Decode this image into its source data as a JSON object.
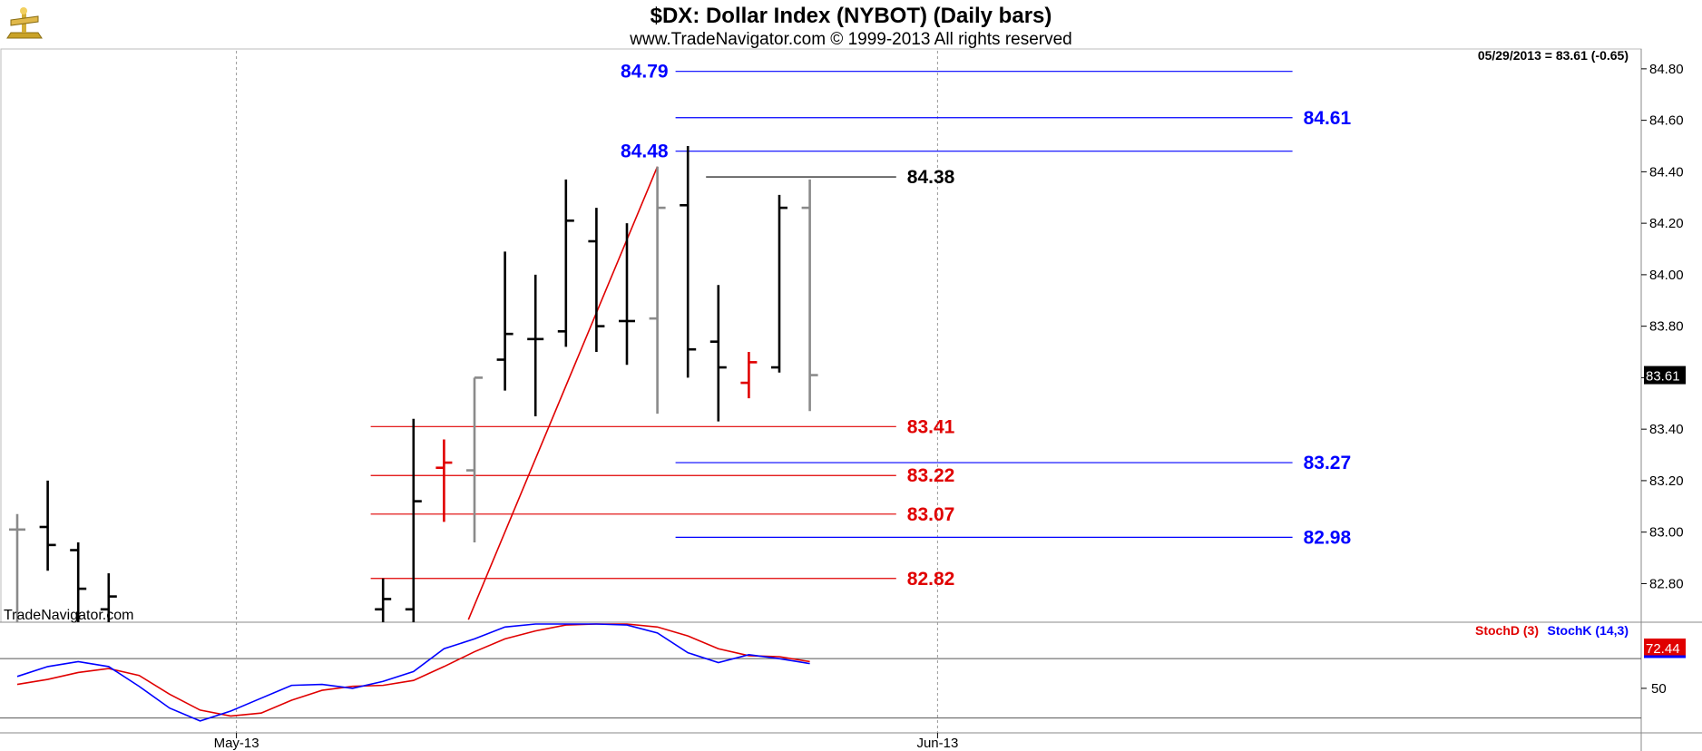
{
  "chart_data": {
    "type": "ohlc",
    "title": "$DX:  Dollar Index (NYBOT)  (Daily bars)",
    "subtitle": "www.TradeNavigator.com © 1999-2013 All rights reserved",
    "quote_label": "05/29/2013 = 83.61 (-0.65)",
    "last_price_label": "83.61",
    "watermark": "TradeNavigator.com",
    "price_axis": {
      "ylim": [
        82.65,
        84.87
      ],
      "ticks": [
        "84.80",
        "84.60",
        "84.40",
        "84.20",
        "84.00",
        "83.80",
        "83.60",
        "83.40",
        "83.20",
        "83.00",
        "82.80"
      ],
      "tick_values": [
        84.8,
        84.6,
        84.4,
        84.2,
        84.0,
        83.8,
        83.6,
        83.4,
        83.2,
        83.0,
        82.8
      ]
    },
    "x_axis": {
      "labels": [
        "May-13",
        "Jun-13"
      ],
      "label_bar_index": [
        6,
        29
      ]
    },
    "bars": [
      {
        "i": 0,
        "o": 83.01,
        "h": 83.07,
        "l": 82.63,
        "c": 83.01,
        "color": "gray"
      },
      {
        "i": 1,
        "o": 83.02,
        "h": 83.2,
        "l": 82.85,
        "c": 82.95,
        "color": "black"
      },
      {
        "i": 2,
        "o": 82.93,
        "h": 82.96,
        "l": 82.6,
        "c": 82.78,
        "color": "black"
      },
      {
        "i": 3,
        "o": 82.7,
        "h": 82.84,
        "l": 82.6,
        "c": 82.75,
        "color": "black"
      },
      {
        "i": 12,
        "o": 82.7,
        "h": 82.82,
        "l": 82.6,
        "c": 82.74,
        "color": "black"
      },
      {
        "i": 13,
        "o": 82.7,
        "h": 83.44,
        "l": 82.6,
        "c": 83.12,
        "color": "black"
      },
      {
        "i": 14,
        "o": 83.25,
        "h": 83.36,
        "l": 83.04,
        "c": 83.27,
        "color": "red"
      },
      {
        "i": 15,
        "o": 83.24,
        "h": 83.6,
        "l": 82.96,
        "c": 83.6,
        "color": "gray"
      },
      {
        "i": 16,
        "o": 83.67,
        "h": 84.09,
        "l": 83.55,
        "c": 83.77,
        "color": "black"
      },
      {
        "i": 17,
        "o": 83.75,
        "h": 84.0,
        "l": 83.45,
        "c": 83.75,
        "color": "black"
      },
      {
        "i": 18,
        "o": 83.78,
        "h": 84.37,
        "l": 83.72,
        "c": 84.21,
        "color": "black"
      },
      {
        "i": 19,
        "o": 84.13,
        "h": 84.26,
        "l": 83.7,
        "c": 83.8,
        "color": "black"
      },
      {
        "i": 20,
        "o": 83.82,
        "h": 84.2,
        "l": 83.65,
        "c": 83.82,
        "color": "black"
      },
      {
        "i": 21,
        "o": 83.83,
        "h": 84.42,
        "l": 83.46,
        "c": 84.26,
        "color": "gray"
      },
      {
        "i": 22,
        "o": 84.27,
        "h": 84.5,
        "l": 83.6,
        "c": 83.71,
        "color": "black"
      },
      {
        "i": 23,
        "o": 83.74,
        "h": 83.96,
        "l": 83.43,
        "c": 83.64,
        "color": "black"
      },
      {
        "i": 24,
        "o": 83.58,
        "h": 83.7,
        "l": 83.52,
        "c": 83.66,
        "color": "red"
      },
      {
        "i": 25,
        "o": 83.64,
        "h": 84.31,
        "l": 83.62,
        "c": 84.26,
        "color": "black"
      },
      {
        "i": 26,
        "o": 84.26,
        "h": 84.37,
        "l": 83.47,
        "c": 83.61,
        "color": "gray"
      }
    ],
    "levels": [
      {
        "value": 84.79,
        "label": "84.79",
        "color": "#0000ff",
        "from": 21,
        "to": 41,
        "label_side": "left"
      },
      {
        "value": 84.61,
        "label": "84.61",
        "color": "#0000ff",
        "from": 21,
        "to": 41,
        "label_side": "right"
      },
      {
        "value": 84.48,
        "label": "84.48",
        "color": "#0000ff",
        "from": 21,
        "to": 41,
        "label_side": "left"
      },
      {
        "value": 84.38,
        "label": "84.38",
        "color": "#000000",
        "from": 22,
        "to": 28,
        "label_side": "right"
      },
      {
        "value": 83.41,
        "label": "83.41",
        "color": "#e00000",
        "from": 11,
        "to": 28,
        "label_side": "right"
      },
      {
        "value": 83.27,
        "label": "83.27",
        "color": "#0000ff",
        "from": 21,
        "to": 41,
        "label_side": "right"
      },
      {
        "value": 83.22,
        "label": "83.22",
        "color": "#e00000",
        "from": 11,
        "to": 28,
        "label_side": "right"
      },
      {
        "value": 83.07,
        "label": "83.07",
        "color": "#e00000",
        "from": 11,
        "to": 28,
        "label_side": "right"
      },
      {
        "value": 82.98,
        "label": "82.98",
        "color": "#0000ff",
        "from": 21,
        "to": 41,
        "label_side": "right"
      },
      {
        "value": 82.82,
        "label": "82.82",
        "color": "#e00000",
        "from": 11,
        "to": 28,
        "label_side": "right"
      }
    ],
    "trendline": {
      "from": {
        "i": 14.8,
        "v": 82.66
      },
      "to": {
        "i": 21.0,
        "v": 84.42
      },
      "color": "#e00000"
    },
    "stochastic": {
      "legend_d": "StochD (3)",
      "legend_k": "StochK (14,3)",
      "last_value_label": "72.44",
      "axis_tick_label": "50",
      "axis_tick_value": 50,
      "ylim": [
        5,
        115
      ],
      "ref_lines": [
        80,
        20
      ],
      "k": [
        {
          "i": 0,
          "v": 62
        },
        {
          "i": 1,
          "v": 72
        },
        {
          "i": 2,
          "v": 77
        },
        {
          "i": 3,
          "v": 72
        },
        {
          "i": 4,
          "v": 52
        },
        {
          "i": 5,
          "v": 30
        },
        {
          "i": 6,
          "v": 17
        },
        {
          "i": 7,
          "v": 27
        },
        {
          "i": 8,
          "v": 40
        },
        {
          "i": 9,
          "v": 53
        },
        {
          "i": 10,
          "v": 54
        },
        {
          "i": 11,
          "v": 50
        },
        {
          "i": 12,
          "v": 57
        },
        {
          "i": 13,
          "v": 67
        },
        {
          "i": 14,
          "v": 90
        },
        {
          "i": 15,
          "v": 100
        },
        {
          "i": 16,
          "v": 112
        },
        {
          "i": 17,
          "v": 116
        },
        {
          "i": 18,
          "v": 118
        },
        {
          "i": 19,
          "v": 117
        },
        {
          "i": 20,
          "v": 114
        },
        {
          "i": 21,
          "v": 106
        },
        {
          "i": 22,
          "v": 86
        },
        {
          "i": 23,
          "v": 76
        },
        {
          "i": 24,
          "v": 84
        },
        {
          "i": 25,
          "v": 80
        },
        {
          "i": 26,
          "v": 75
        }
      ],
      "d": [
        {
          "i": 0,
          "v": 54
        },
        {
          "i": 1,
          "v": 59
        },
        {
          "i": 2,
          "v": 66
        },
        {
          "i": 3,
          "v": 70
        },
        {
          "i": 4,
          "v": 63
        },
        {
          "i": 5,
          "v": 44
        },
        {
          "i": 6,
          "v": 28
        },
        {
          "i": 7,
          "v": 22
        },
        {
          "i": 8,
          "v": 25
        },
        {
          "i": 9,
          "v": 38
        },
        {
          "i": 10,
          "v": 48
        },
        {
          "i": 11,
          "v": 52
        },
        {
          "i": 12,
          "v": 53
        },
        {
          "i": 13,
          "v": 58
        },
        {
          "i": 14,
          "v": 72
        },
        {
          "i": 15,
          "v": 87
        },
        {
          "i": 16,
          "v": 100
        },
        {
          "i": 17,
          "v": 108
        },
        {
          "i": 18,
          "v": 114
        },
        {
          "i": 19,
          "v": 116
        },
        {
          "i": 20,
          "v": 116
        },
        {
          "i": 21,
          "v": 112
        },
        {
          "i": 22,
          "v": 103
        },
        {
          "i": 23,
          "v": 90
        },
        {
          "i": 24,
          "v": 83
        },
        {
          "i": 25,
          "v": 82
        },
        {
          "i": 26,
          "v": 77
        }
      ]
    }
  }
}
